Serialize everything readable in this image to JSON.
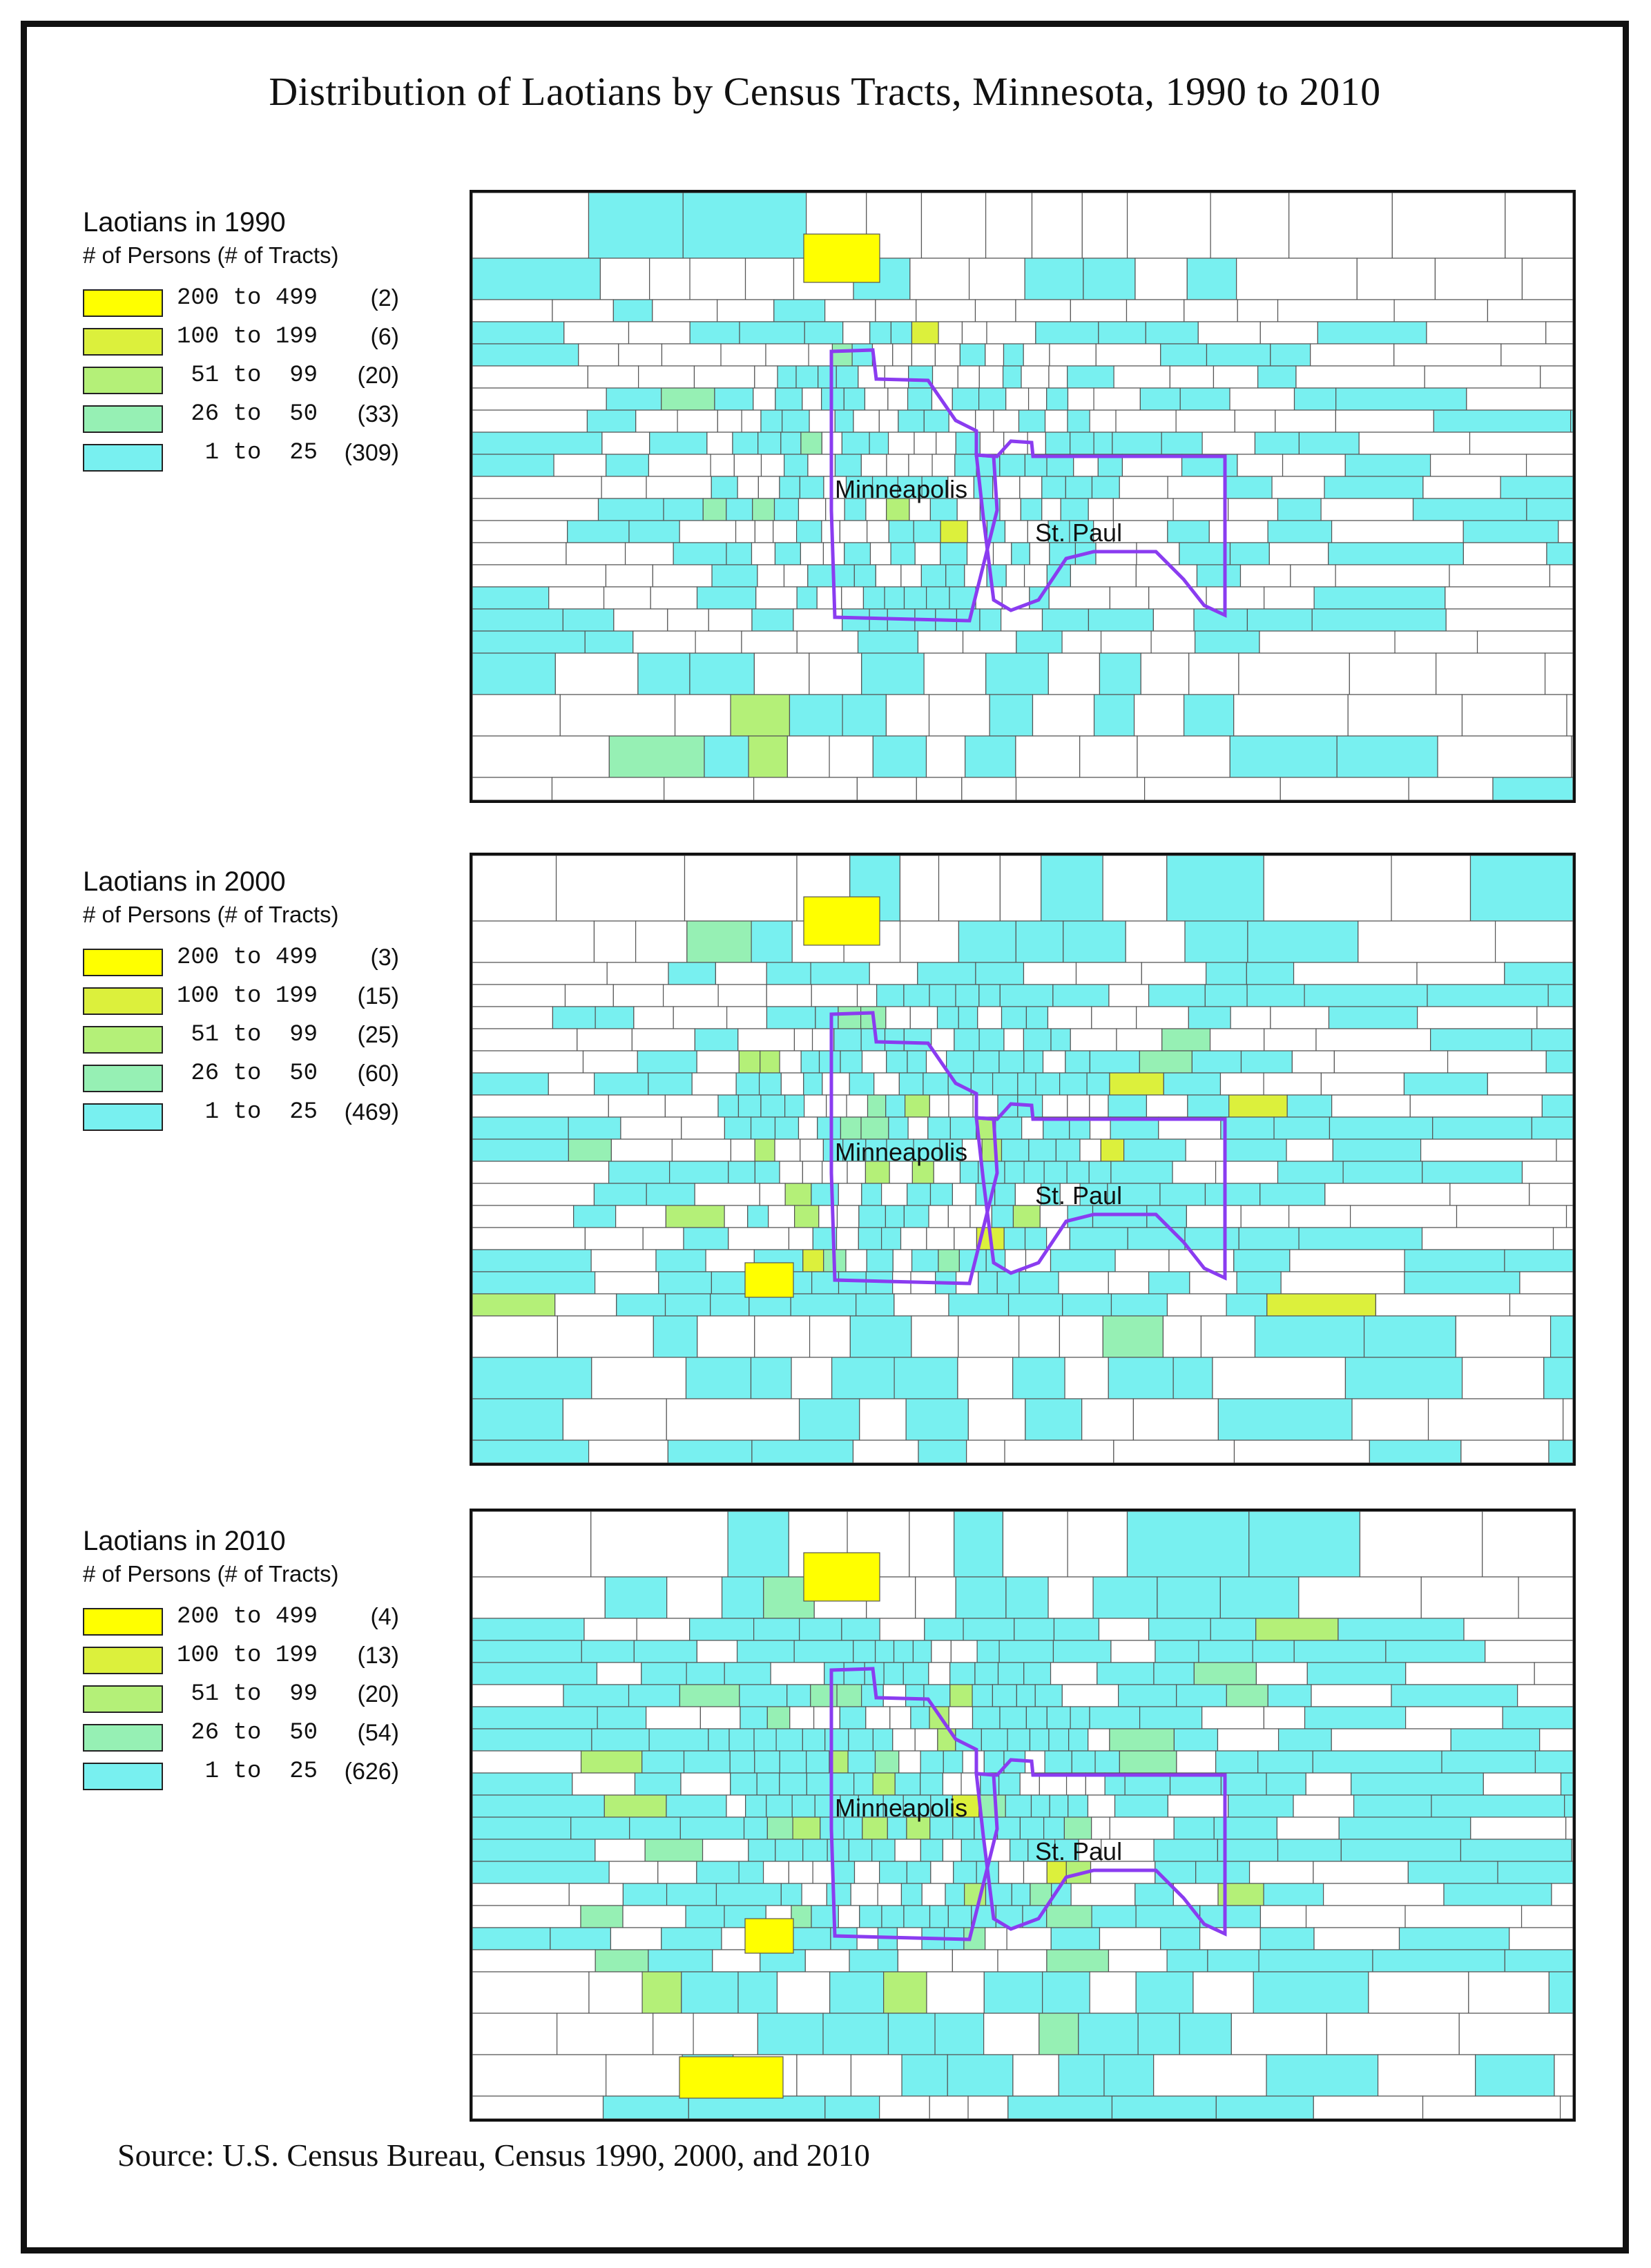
{
  "title": "Distribution of Laotians by Census Tracts, Minnesota, 1990 to 2010",
  "source": "Source: U.S. Census Bureau, Census 1990, 2000, and 2010",
  "colors": {
    "c200_499": "#ffff00",
    "c100_199": "#dcf03c",
    "c51_99": "#b4f078",
    "c26_50": "#96f0b4",
    "c1_25": "#78f0f0",
    "city_boundary": "#8a3cf0",
    "tract_line": "#555555"
  },
  "panels": [
    {
      "legend_title": "Laotians in 1990",
      "legend_subtitle": "# of Persons (# of Tracts)",
      "classes": [
        {
          "label": "200 to 499",
          "count": "(2)"
        },
        {
          "label": "100 to 199",
          "count": "(6)"
        },
        {
          "label": " 51 to  99",
          "count": "(20)"
        },
        {
          "label": " 26 to  50",
          "count": "(33)"
        },
        {
          "label": "  1 to  25",
          "count": "(309)"
        }
      ],
      "city_labels": {
        "minneapolis": "Minneapolis",
        "st_paul": "St. Paul"
      }
    },
    {
      "legend_title": "Laotians in 2000",
      "legend_subtitle": "# of Persons (# of Tracts)",
      "classes": [
        {
          "label": "200 to 499",
          "count": "(3)"
        },
        {
          "label": "100 to 199",
          "count": "(15)"
        },
        {
          "label": " 51 to  99",
          "count": "(25)"
        },
        {
          "label": " 26 to  50",
          "count": "(60)"
        },
        {
          "label": "  1 to  25",
          "count": "(469)"
        }
      ],
      "city_labels": {
        "minneapolis": "Minneapolis",
        "st_paul": "St. Paul"
      }
    },
    {
      "legend_title": "Laotians in 2010",
      "legend_subtitle": "# of Persons (# of Tracts)",
      "classes": [
        {
          "label": "200 to 499",
          "count": "(4)"
        },
        {
          "label": "100 to 199",
          "count": "(13)"
        },
        {
          "label": " 51 to  99",
          "count": "(20)"
        },
        {
          "label": " 26 to  50",
          "count": "(54)"
        },
        {
          "label": "  1 to  25",
          "count": "(626)"
        }
      ],
      "city_labels": {
        "minneapolis": "Minneapolis",
        "st_paul": "St. Paul"
      }
    }
  ]
}
